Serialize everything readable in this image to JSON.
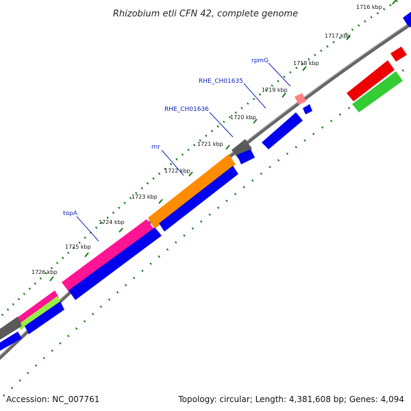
{
  "title": "Rhizobium etli CFN 42, complete genome",
  "footer": {
    "accession": "Accession: NC_007761",
    "summary": "Topology: circular; Length: 4,381,608 bp; Genes: 4,094"
  },
  "scale_labels": [
    "1716 kbp",
    "1717 kbp",
    "1718 kbp",
    "1719 kbp",
    "1720 kbp",
    "1721 kbp",
    "1722 kbp",
    "1723 kbp",
    "1724 kbp",
    "1725 kbp",
    "1726 kbp"
  ],
  "gene_labels": [
    "rpmG",
    "RHE_CH01635",
    "RHE_CH01636",
    "rnr",
    "topA"
  ],
  "colors": {
    "backbone": "#808080",
    "cds": "#0000ee",
    "gene_gray": "#5a5a5a",
    "orange": "#ff8c00",
    "pink": "#ff1493",
    "light_green": "#99ee44",
    "red": "#ee0000",
    "green": "#33cc33",
    "rna": "#ff8080",
    "ticks": "#007700",
    "label": "#0b1fb3"
  }
}
